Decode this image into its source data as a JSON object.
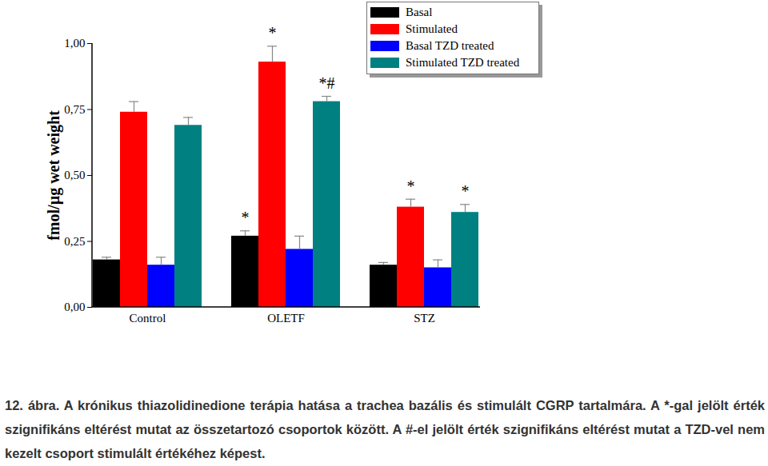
{
  "chart_data": {
    "type": "bar",
    "caption": "12. ábra. A krónikus thiazolidinedione terápia hatása a trachea bazális és stimulált CGRP tartalmára. A *-gal jelölt érték szignifikáns eltérést mutat az összetartozó csoportok között. A #-el jelölt érték szignifikáns eltérést mutat a TZD-vel nem kezelt csoport stimulált értékéhez képest.",
    "y_label": "fmol/µg wet weight",
    "categories": [
      "Control",
      "OLETF",
      "STZ"
    ],
    "series": [
      {
        "name": "Basal",
        "color": "#000000",
        "values": [
          0.18,
          0.27,
          0.16
        ],
        "errors": [
          0.01,
          0.02,
          0.01
        ],
        "annotations": [
          null,
          "*",
          null
        ]
      },
      {
        "name": "Stimulated",
        "color": "#ff0000",
        "values": [
          0.74,
          0.93,
          0.38
        ],
        "errors": [
          0.04,
          0.06,
          0.03
        ],
        "annotations": [
          null,
          "*",
          "*"
        ]
      },
      {
        "name": "Basal TZD treated",
        "color": "#0000ff",
        "values": [
          0.16,
          0.22,
          0.15
        ],
        "errors": [
          0.03,
          0.05,
          0.03
        ],
        "annotations": [
          null,
          null,
          null
        ]
      },
      {
        "name": "Stimulated TZD treated",
        "color": "#008080",
        "values": [
          0.69,
          0.78,
          0.36
        ],
        "errors": [
          0.03,
          0.02,
          0.03
        ],
        "annotations": [
          null,
          "*#",
          "*"
        ]
      }
    ],
    "ylim": [
      0,
      1.0
    ],
    "yticks": [
      {
        "value": 0,
        "label": "0,00"
      },
      {
        "value": 0.25,
        "label": "0,25"
      },
      {
        "value": 0.5,
        "label": "0,50"
      },
      {
        "value": 0.75,
        "label": "0,75"
      },
      {
        "value": 1.0,
        "label": "1,00"
      }
    ],
    "legend": "top-right",
    "grid": false
  }
}
